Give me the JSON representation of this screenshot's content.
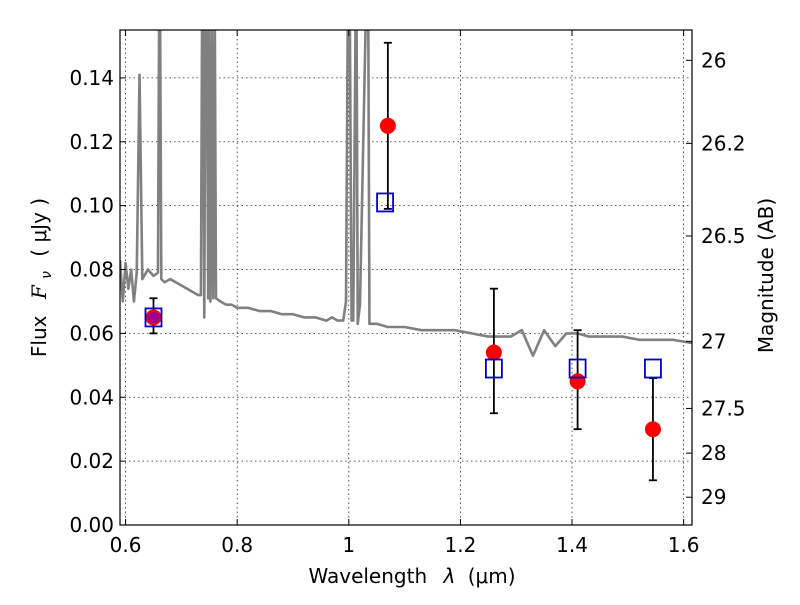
{
  "chart_data": {
    "type": "scatter",
    "xlabel": "Wavelength",
    "xlabel_math": "λ",
    "xlabel_unit": "(μm)",
    "ylabel": "Flux",
    "ylabel_math_main": "F",
    "ylabel_math_sub": "ν",
    "ylabel_unit": "( μJy )",
    "y2label": "Magnitude (AB)",
    "xlim": [
      0.59,
      1.615
    ],
    "ylim": [
      0.0,
      0.155
    ],
    "x_ticks": [
      0.6,
      0.8,
      1.0,
      1.2,
      1.4,
      1.6
    ],
    "x_tick_labels": [
      "0.6",
      "0.8",
      "1",
      "1.2",
      "1.4",
      "1.6"
    ],
    "y_ticks": [
      0.0,
      0.02,
      0.04,
      0.06,
      0.08,
      0.1,
      0.12,
      0.14
    ],
    "y_tick_labels": [
      "0.00",
      "0.02",
      "0.04",
      "0.06",
      "0.08",
      "0.10",
      "0.12",
      "0.14"
    ],
    "y2_ticks": [
      {
        "label": "26",
        "flux": 0.1455
      },
      {
        "label": "26.2",
        "flux": 0.1195
      },
      {
        "label": "26.5",
        "flux": 0.0905
      },
      {
        "label": "27",
        "flux": 0.0575
      },
      {
        "label": "27.5",
        "flux": 0.0365
      },
      {
        "label": "28",
        "flux": 0.0225
      },
      {
        "label": "29",
        "flux": 0.0087
      }
    ],
    "grid": true,
    "colors": {
      "model": "#808080",
      "observed": "#ff0000",
      "synthetic": "#0000cc",
      "errorbar": "#000000",
      "overlap": "#990099"
    },
    "series": [
      {
        "kind": "line",
        "points": [
          [
            0.59,
            0.083
          ],
          [
            0.595,
            0.07
          ],
          [
            0.6,
            0.082
          ],
          [
            0.605,
            0.074
          ],
          [
            0.61,
            0.08
          ],
          [
            0.615,
            0.07
          ],
          [
            0.62,
            0.079
          ],
          [
            0.625,
            0.141
          ],
          [
            0.63,
            0.077
          ],
          [
            0.64,
            0.08
          ],
          [
            0.65,
            0.078
          ],
          [
            0.658,
            0.079
          ],
          [
            0.66,
            0.155
          ],
          [
            0.662,
            0.155
          ],
          [
            0.664,
            0.077
          ],
          [
            0.67,
            0.076
          ],
          [
            0.68,
            0.077
          ],
          [
            0.69,
            0.076
          ],
          [
            0.7,
            0.075
          ],
          [
            0.71,
            0.074
          ],
          [
            0.72,
            0.073
          ],
          [
            0.73,
            0.072
          ],
          [
            0.735,
            0.072
          ],
          [
            0.737,
            0.155
          ],
          [
            0.739,
            0.155
          ],
          [
            0.741,
            0.065
          ],
          [
            0.743,
            0.155
          ],
          [
            0.746,
            0.155
          ],
          [
            0.748,
            0.071
          ],
          [
            0.75,
            0.155
          ],
          [
            0.752,
            0.07
          ],
          [
            0.755,
            0.155
          ],
          [
            0.757,
            0.071
          ],
          [
            0.76,
            0.155
          ],
          [
            0.762,
            0.071
          ],
          [
            0.77,
            0.07
          ],
          [
            0.78,
            0.069
          ],
          [
            0.79,
            0.069
          ],
          [
            0.8,
            0.068
          ],
          [
            0.82,
            0.068
          ],
          [
            0.84,
            0.067
          ],
          [
            0.86,
            0.067
          ],
          [
            0.88,
            0.066
          ],
          [
            0.9,
            0.066
          ],
          [
            0.92,
            0.065
          ],
          [
            0.94,
            0.065
          ],
          [
            0.96,
            0.064
          ],
          [
            0.97,
            0.065
          ],
          [
            0.98,
            0.064
          ],
          [
            0.99,
            0.064
          ],
          [
            0.995,
            0.07
          ],
          [
            0.998,
            0.155
          ],
          [
            1.002,
            0.155
          ],
          [
            1.005,
            0.064
          ],
          [
            1.008,
            0.064
          ],
          [
            1.012,
            0.155
          ],
          [
            1.014,
            0.155
          ],
          [
            1.016,
            0.063
          ],
          [
            1.02,
            0.069
          ],
          [
            1.03,
            0.155
          ],
          [
            1.035,
            0.155
          ],
          [
            1.037,
            0.063
          ],
          [
            1.05,
            0.063
          ],
          [
            1.07,
            0.062
          ],
          [
            1.1,
            0.062
          ],
          [
            1.13,
            0.061
          ],
          [
            1.16,
            0.061
          ],
          [
            1.19,
            0.061
          ],
          [
            1.22,
            0.06
          ],
          [
            1.25,
            0.059
          ],
          [
            1.27,
            0.059
          ],
          [
            1.29,
            0.059
          ],
          [
            1.31,
            0.061
          ],
          [
            1.33,
            0.053
          ],
          [
            1.35,
            0.061
          ],
          [
            1.37,
            0.056
          ],
          [
            1.39,
            0.06
          ],
          [
            1.41,
            0.06
          ],
          [
            1.43,
            0.059
          ],
          [
            1.46,
            0.059
          ],
          [
            1.49,
            0.059
          ],
          [
            1.52,
            0.058
          ],
          [
            1.55,
            0.058
          ],
          [
            1.58,
            0.058
          ],
          [
            1.615,
            0.057
          ]
        ]
      },
      {
        "kind": "errorbar",
        "points": [
          {
            "x": 0.65,
            "y": 0.065,
            "ylo": 0.06,
            "yhi": 0.071
          },
          {
            "x": 1.07,
            "y": 0.125,
            "ylo": 0.099,
            "yhi": 0.151
          },
          {
            "x": 1.26,
            "y": 0.054,
            "ylo": 0.035,
            "yhi": 0.074
          },
          {
            "x": 1.41,
            "y": 0.045,
            "ylo": 0.03,
            "yhi": 0.061
          },
          {
            "x": 1.545,
            "y": 0.03,
            "ylo": 0.014,
            "yhi": 0.046
          }
        ]
      },
      {
        "kind": "squares",
        "points": [
          {
            "x": 0.65,
            "y": 0.065
          },
          {
            "x": 1.065,
            "y": 0.101
          },
          {
            "x": 1.26,
            "y": 0.049
          },
          {
            "x": 1.41,
            "y": 0.049
          },
          {
            "x": 1.545,
            "y": 0.049
          }
        ]
      }
    ]
  }
}
